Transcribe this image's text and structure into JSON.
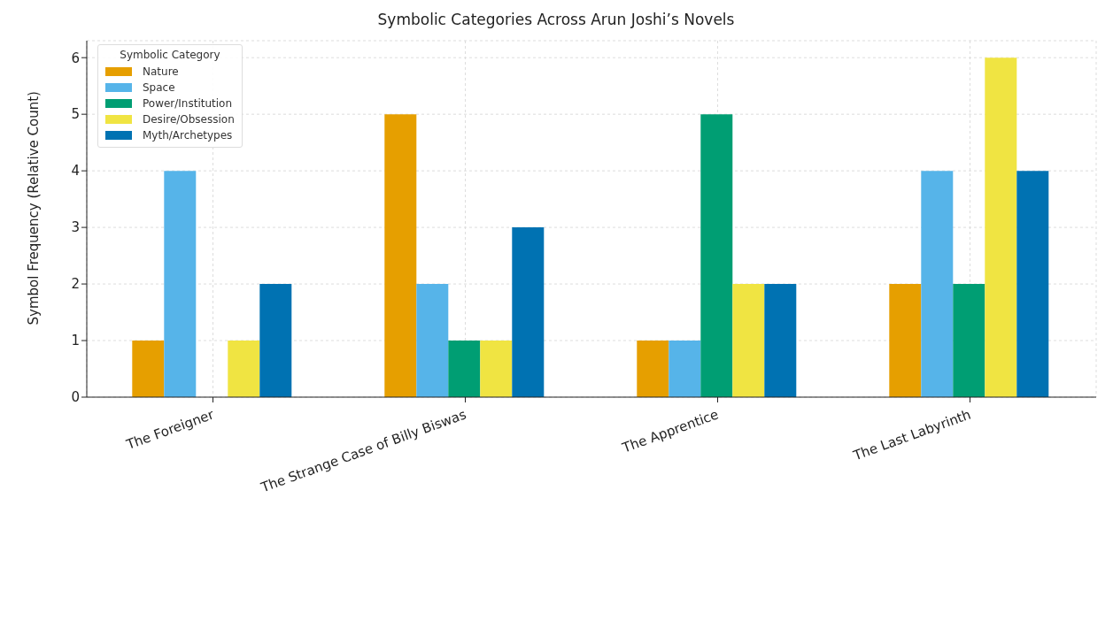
{
  "chart_data": {
    "type": "bar",
    "title": "Symbolic Categories Across Arun Joshi’s Novels",
    "ylabel": "Symbol Frequency (Relative Count)",
    "legend_title": "Symbolic Category",
    "categories": [
      "The Foreigner",
      "The Strange Case of Billy Biswas",
      "The Apprentice",
      "The Last Labyrinth"
    ],
    "series": [
      {
        "name": "Nature",
        "color": "#e69f00",
        "values": [
          1,
          5,
          1,
          2
        ]
      },
      {
        "name": "Space",
        "color": "#56b4e9",
        "values": [
          4,
          2,
          1,
          4
        ]
      },
      {
        "name": "Power/Institution",
        "color": "#009e73",
        "values": [
          0,
          1,
          5,
          2
        ]
      },
      {
        "name": "Desire/Obsession",
        "color": "#f0e442",
        "values": [
          1,
          1,
          2,
          6
        ]
      },
      {
        "name": "Myth/Archetypes",
        "color": "#0072b2",
        "values": [
          2,
          3,
          2,
          4
        ]
      }
    ],
    "ylim": [
      0,
      6.3
    ],
    "yticks": [
      0,
      1,
      2,
      3,
      4,
      5,
      6
    ],
    "grid": true,
    "legend": "top left"
  }
}
